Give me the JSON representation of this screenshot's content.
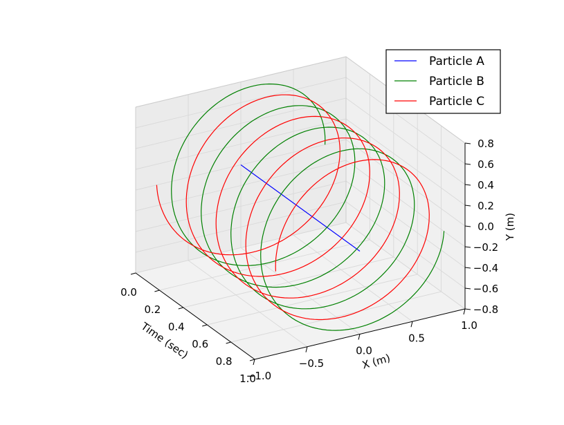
{
  "chart_data": {
    "type": "line",
    "projection": "3d",
    "grid": true,
    "legend_placement": "top-right",
    "axes": {
      "time": {
        "label": "Time (sec)",
        "range": [
          0.0,
          1.0
        ],
        "ticks": [
          "0.0",
          "0.2",
          "0.4",
          "0.6",
          "0.8",
          "1.0"
        ]
      },
      "x": {
        "label": "X (m)",
        "range": [
          -1.0,
          1.0
        ],
        "ticks": [
          "−1.0",
          "−0.5",
          "0.0",
          "0.5",
          "1.0"
        ]
      },
      "y": {
        "label": "Y (m)",
        "range": [
          -0.8,
          0.8
        ],
        "ticks": [
          "−0.8",
          "−0.6",
          "−0.4",
          "−0.2",
          "0.0",
          "0.2",
          "0.4",
          "0.6",
          "0.8"
        ]
      }
    },
    "series": [
      {
        "name": "Particle A",
        "color": "#0000ff",
        "motion": "stationary",
        "radius": 0.0,
        "cycles": 0,
        "phase_deg": 0
      },
      {
        "name": "Particle B",
        "color": "#008000",
        "motion": "helix",
        "radius": 0.8,
        "cycles": 4,
        "phase_deg": 0
      },
      {
        "name": "Particle C",
        "color": "#ff0000",
        "motion": "helix",
        "radius": 0.8,
        "cycles": 4,
        "phase_deg": 180
      }
    ]
  }
}
